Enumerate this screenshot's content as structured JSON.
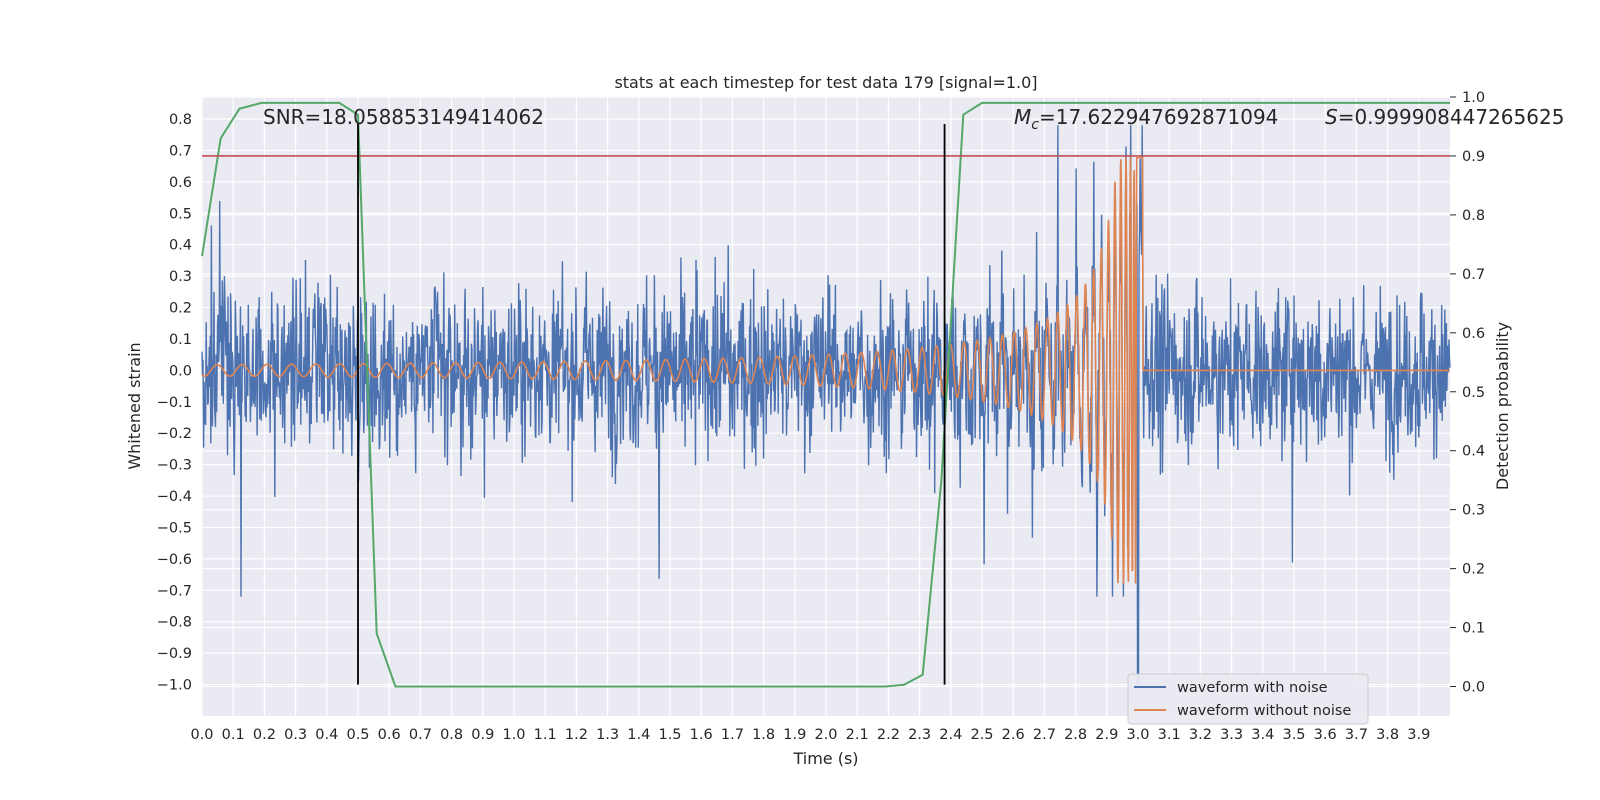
{
  "chart_data": {
    "type": "line",
    "title": "stats at each timestep for test data 179 [signal=1.0]",
    "xlabel": "Time (s)",
    "ylabel": "Whitened strain",
    "y2label": "Detection probability",
    "xlim": [
      0.0,
      4.0
    ],
    "ylim": [
      -1.1,
      0.87
    ],
    "y2lim": [
      -0.05,
      1.0
    ],
    "xticks": [
      "0.0",
      "0.1",
      "0.2",
      "0.3",
      "0.4",
      "0.5",
      "0.6",
      "0.7",
      "0.8",
      "0.9",
      "1.0",
      "1.1",
      "1.2",
      "1.3",
      "1.4",
      "1.5",
      "1.6",
      "1.7",
      "1.8",
      "1.9",
      "2.0",
      "2.1",
      "2.2",
      "2.3",
      "2.4",
      "2.5",
      "2.6",
      "2.7",
      "2.8",
      "2.9",
      "3.0",
      "3.1",
      "3.2",
      "3.3",
      "3.4",
      "3.5",
      "3.6",
      "3.7",
      "3.8",
      "3.9"
    ],
    "yticks": [
      "0.8",
      "0.7",
      "0.6",
      "0.5",
      "0.4",
      "0.3",
      "0.2",
      "0.1",
      "0.0",
      "−0.1",
      "−0.2",
      "−0.3",
      "−0.4",
      "−0.5",
      "−0.6",
      "−0.7",
      "−0.8",
      "−0.9",
      "−1.0"
    ],
    "y2ticks": [
      "1.0",
      "0.9",
      "0.8",
      "0.7",
      "0.6",
      "0.5",
      "0.4",
      "0.3",
      "0.2",
      "0.1",
      "0.0"
    ],
    "grid": true,
    "legend_position": "lower-right",
    "series": [
      {
        "name": "waveform with noise",
        "color": "#4c72b0",
        "axis": "left",
        "kind": "noise",
        "description_values": {
          "approx_range": [
            -1.0,
            0.79
          ],
          "typical_amplitude": 0.25
        }
      },
      {
        "name": "waveform without noise",
        "color": "#dd8452",
        "axis": "left",
        "kind": "chirp",
        "merger_time": 3.0,
        "start_amplitude": 0.02,
        "peak_amplitude": 0.68,
        "ringdown_level": 0.0
      },
      {
        "name": "",
        "color": "#55a868",
        "axis": "right",
        "kind": "probability",
        "x": [
          0.0,
          0.06,
          0.12,
          0.19,
          0.25,
          0.31,
          0.44,
          0.5,
          0.56,
          0.62,
          0.69,
          0.75,
          1.0,
          1.5,
          2.0,
          2.19,
          2.25,
          2.31,
          2.37,
          2.44,
          2.5,
          2.56,
          3.0,
          3.5,
          4.0
        ],
        "y": [
          0.73,
          0.93,
          0.98,
          0.99,
          0.99,
          0.99,
          0.99,
          0.97,
          0.09,
          0.0,
          0.0,
          0.0,
          0.0,
          0.0,
          0.0,
          0.0,
          0.003,
          0.02,
          0.35,
          0.97,
          0.99,
          0.99,
          0.99,
          0.99,
          0.99
        ]
      }
    ],
    "threshold": {
      "axis": "right",
      "value": 0.9,
      "color": "#c44e52"
    },
    "vlines": [
      {
        "x": 0.5,
        "color": "#000000"
      },
      {
        "x": 2.38,
        "color": "#000000"
      }
    ],
    "annotations": {
      "snr": "SNR=18.058853149414062",
      "mc_symbol": "M",
      "mc_sub": "c",
      "mc_value": "=17.622947692871094",
      "s_symbol": "S",
      "s_value": "=0.999908447265625"
    },
    "colors": {
      "plot_bg": "#eaeaf2",
      "grid": "#ffffff",
      "text": "#262626"
    }
  }
}
